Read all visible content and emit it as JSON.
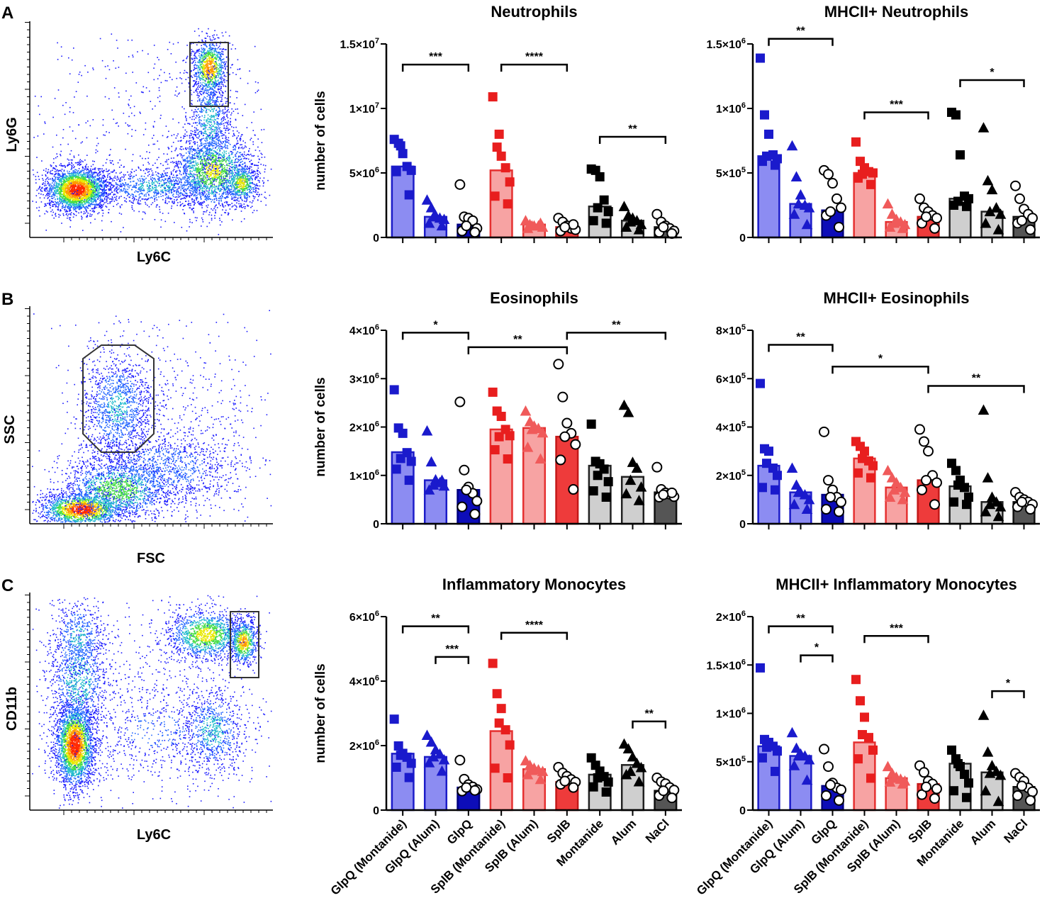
{
  "panels": [
    {
      "letter": "A",
      "flow": {
        "x_label": "Ly6C",
        "y_label": "Ly6G",
        "gate": "rect-top"
      }
    },
    {
      "letter": "B",
      "flow": {
        "x_label": "FSC",
        "y_label": "SSC",
        "gate": "octagon"
      }
    },
    {
      "letter": "C",
      "flow": {
        "x_label": "Ly6C",
        "y_label": "CD11b",
        "gate": "rect-right"
      }
    }
  ],
  "legend_groups": [
    "GlpQ (Montanide)",
    "GlpQ (Alum)",
    "GlpQ",
    "SplB (Montanide)",
    "SplB (Alum)",
    "SplB",
    "Montanide",
    "Alum",
    "NaCl"
  ],
  "colors": {
    "bar_fill": [
      "#8c8cf2",
      "#8c8cf2",
      "#0d0db8",
      "#f7a3a3",
      "#f7a3a3",
      "#ee3b3b",
      "#cfcfcf",
      "#cfcfcf",
      "#555555"
    ],
    "bar_edge": [
      "#1c1cc8",
      "#1c1cc8",
      "#000080",
      "#e53030",
      "#e53030",
      "#c41818",
      "#222222",
      "#222222",
      "#111111"
    ],
    "point_fill": [
      "#1a1acc",
      "#1a1acc",
      "#ffffff",
      "#e81e1e",
      "#f05a5a",
      "#ffffff",
      "#000000",
      "#000000",
      "#ffffff"
    ],
    "axis": "#000000"
  },
  "chart_data": [
    {
      "type": "bar",
      "title": "Neutrophils",
      "ylabel": "number of cells",
      "ylim": [
        0,
        15000000
      ],
      "ticks": [
        {
          "m": "0",
          "e": ""
        },
        {
          "m": "5×10",
          "e": "6"
        },
        {
          "m": "1×10",
          "e": "7"
        },
        {
          "m": "1.5×10",
          "e": "7"
        }
      ],
      "tick_values": [
        0,
        5000000,
        10000000,
        15000000
      ],
      "show_categories": false,
      "categories": [
        "GlpQ (Montanide)",
        "GlpQ (Alum)",
        "GlpQ",
        "SplB (Montanide)",
        "SplB (Alum)",
        "SplB",
        "Montanide",
        "Alum",
        "NaCl"
      ],
      "values": [
        5500000,
        1600000,
        1000000,
        5200000,
        1000000,
        800000,
        2400000,
        1300000,
        800000
      ],
      "points": [
        [
          7600000,
          7300000,
          6500000,
          5500000,
          5200000,
          5100000,
          3300000,
          7100000
        ],
        [
          2900000,
          2300000,
          1700000,
          1500000,
          1400000,
          1100000,
          900000,
          1600000
        ],
        [
          4100000,
          1600000,
          1500000,
          1300000,
          700000,
          500000,
          400000,
          900000
        ],
        [
          10900000,
          7000000,
          6300000,
          5400000,
          4300000,
          3200000,
          2600000,
          8000000
        ],
        [
          1300000,
          1000000,
          900000,
          900000,
          800000,
          700000,
          1100000,
          900000
        ],
        [
          1500000,
          1200000,
          900000,
          700000,
          600000,
          500000,
          1000000,
          800000
        ],
        [
          5300000,
          5200000,
          4700000,
          2900000,
          2000000,
          1300000,
          1100000,
          2300000
        ],
        [
          2400000,
          1700000,
          1500000,
          1300000,
          1000000,
          800000,
          600000,
          1200000
        ],
        [
          1800000,
          1200000,
          900000,
          700000,
          500000,
          400000,
          300000,
          800000
        ]
      ],
      "brackets": [
        {
          "from": 0,
          "to": 2,
          "y": 13400000,
          "stars": "***"
        },
        {
          "from": 3,
          "to": 5,
          "y": 13400000,
          "stars": "****"
        },
        {
          "from": 6,
          "to": 8,
          "y": 7800000,
          "stars": "**"
        }
      ]
    },
    {
      "type": "bar",
      "title": "MHCII+ Neutrophils",
      "ylabel": "",
      "ylim": [
        0,
        1500000
      ],
      "ticks": [
        {
          "m": "0",
          "e": ""
        },
        {
          "m": "5×10",
          "e": "5"
        },
        {
          "m": "1×10",
          "e": "6"
        },
        {
          "m": "1.5×10",
          "e": "6"
        }
      ],
      "tick_values": [
        0,
        500000,
        1000000,
        1500000
      ],
      "show_categories": false,
      "categories": [
        "GlpQ (Montanide)",
        "GlpQ (Alum)",
        "GlpQ",
        "SplB (Montanide)",
        "SplB (Alum)",
        "SplB",
        "Montanide",
        "Alum",
        "NaCl"
      ],
      "values": [
        630000,
        260000,
        210000,
        500000,
        120000,
        160000,
        300000,
        200000,
        160000
      ],
      "points": [
        [
          1390000,
          950000,
          800000,
          640000,
          610000,
          590000,
          560000,
          630000
        ],
        [
          710000,
          470000,
          330000,
          250000,
          230000,
          180000,
          100000,
          260000
        ],
        [
          520000,
          490000,
          420000,
          300000,
          230000,
          170000,
          80000,
          200000
        ],
        [
          740000,
          590000,
          540000,
          510000,
          500000,
          460000,
          410000,
          490000
        ],
        [
          260000,
          180000,
          140000,
          120000,
          100000,
          80000,
          70000,
          110000
        ],
        [
          300000,
          230000,
          200000,
          170000,
          150000,
          110000,
          70000,
          160000
        ],
        [
          970000,
          950000,
          640000,
          320000,
          300000,
          250000,
          240000,
          280000
        ],
        [
          850000,
          440000,
          370000,
          230000,
          180000,
          110000,
          60000,
          200000
        ],
        [
          400000,
          300000,
          220000,
          180000,
          150000,
          110000,
          60000,
          130000
        ]
      ],
      "brackets": [
        {
          "from": 0,
          "to": 2,
          "y": 1540000,
          "stars": "**"
        },
        {
          "from": 3,
          "to": 5,
          "y": 970000,
          "stars": "***"
        },
        {
          "from": 6,
          "to": 8,
          "y": 1220000,
          "stars": "*"
        }
      ]
    },
    {
      "type": "bar",
      "title": "Eosinophils",
      "ylabel": "number of cells",
      "ylim": [
        0,
        4000000
      ],
      "ticks": [
        {
          "m": "0",
          "e": ""
        },
        {
          "m": "1×10",
          "e": "6"
        },
        {
          "m": "2×10",
          "e": "6"
        },
        {
          "m": "3×10",
          "e": "6"
        },
        {
          "m": "4×10",
          "e": "6"
        }
      ],
      "tick_values": [
        0,
        1000000,
        2000000,
        3000000,
        4000000
      ],
      "show_categories": false,
      "categories": [
        "GlpQ (Montanide)",
        "GlpQ (Alum)",
        "GlpQ",
        "SplB (Montanide)",
        "SplB (Alum)",
        "SplB",
        "Montanide",
        "Alum",
        "NaCl"
      ],
      "values": [
        1480000,
        900000,
        700000,
        1950000,
        1980000,
        1800000,
        1200000,
        970000,
        650000
      ],
      "points": [
        [
          2770000,
          1980000,
          1870000,
          1470000,
          1290000,
          1130000,
          900000,
          1350000
        ],
        [
          1920000,
          1280000,
          910000,
          850000,
          780000,
          700000,
          900000,
          800000
        ],
        [
          2520000,
          1110000,
          760000,
          630000,
          470000,
          350000,
          200000,
          700000
        ],
        [
          2720000,
          2330000,
          2220000,
          1950000,
          1820000,
          1530000,
          1340000,
          1800000
        ],
        [
          2330000,
          2110000,
          2020000,
          1970000,
          1880000,
          1580000,
          1340000,
          1950000
        ],
        [
          3300000,
          2620000,
          2080000,
          1870000,
          1640000,
          1320000,
          710000,
          1800000
        ],
        [
          2060000,
          1290000,
          1240000,
          1130000,
          870000,
          680000,
          550000,
          1000000
        ],
        [
          2450000,
          2300000,
          1270000,
          1150000,
          760000,
          620000,
          480000,
          900000
        ],
        [
          1170000,
          710000,
          640000,
          610000,
          560000,
          550000,
          640000,
          600000
        ]
      ],
      "brackets": [
        {
          "from": 0,
          "to": 2,
          "y": 3950000,
          "stars": "*"
        },
        {
          "from": 2,
          "to": 5,
          "y": 3650000,
          "stars": "**"
        },
        {
          "from": 5,
          "to": 8,
          "y": 3950000,
          "stars": "**"
        }
      ]
    },
    {
      "type": "bar",
      "title": "MHCII+ Eosinophils",
      "ylabel": "",
      "ylim": [
        0,
        800000
      ],
      "ticks": [
        {
          "m": "0",
          "e": ""
        },
        {
          "m": "2×10",
          "e": "5"
        },
        {
          "m": "4×10",
          "e": "5"
        },
        {
          "m": "6×10",
          "e": "5"
        },
        {
          "m": "8×10",
          "e": "5"
        }
      ],
      "tick_values": [
        0,
        200000,
        400000,
        600000,
        800000
      ],
      "show_categories": false,
      "categories": [
        "GlpQ (Montanide)",
        "GlpQ (Alum)",
        "GlpQ",
        "SplB (Montanide)",
        "SplB (Alum)",
        "SplB",
        "Montanide",
        "Alum",
        "NaCl"
      ],
      "values": [
        240000,
        130000,
        120000,
        270000,
        150000,
        180000,
        155000,
        90000,
        90000
      ],
      "points": [
        [
          580000,
          310000,
          300000,
          230000,
          200000,
          150000,
          140000,
          250000
        ],
        [
          230000,
          160000,
          130000,
          120000,
          100000,
          80000,
          60000,
          130000
        ],
        [
          380000,
          180000,
          140000,
          110000,
          90000,
          60000,
          50000,
          110000
        ],
        [
          340000,
          320000,
          300000,
          260000,
          240000,
          210000,
          190000,
          270000
        ],
        [
          220000,
          190000,
          170000,
          150000,
          130000,
          110000,
          100000,
          140000
        ],
        [
          390000,
          340000,
          300000,
          200000,
          170000,
          140000,
          80000,
          180000
        ],
        [
          250000,
          220000,
          180000,
          150000,
          110000,
          90000,
          80000,
          160000
        ],
        [
          470000,
          190000,
          110000,
          90000,
          70000,
          50000,
          30000,
          80000
        ],
        [
          130000,
          110000,
          100000,
          90000,
          80000,
          70000,
          60000,
          90000
        ]
      ],
      "brackets": [
        {
          "from": 0,
          "to": 2,
          "y": 740000,
          "stars": "**"
        },
        {
          "from": 2,
          "to": 5,
          "y": 650000,
          "stars": "*"
        },
        {
          "from": 5,
          "to": 8,
          "y": 570000,
          "stars": "**"
        }
      ]
    },
    {
      "type": "bar",
      "title": "Inflammatory Monocytes",
      "ylabel": "number of cells",
      "ylim": [
        0,
        6000000
      ],
      "ticks": [
        {
          "m": "0",
          "e": ""
        },
        {
          "m": "2×10",
          "e": "6"
        },
        {
          "m": "4×10",
          "e": "6"
        },
        {
          "m": "6×10",
          "e": "6"
        }
      ],
      "tick_values": [
        0,
        2000000,
        4000000,
        6000000
      ],
      "show_categories": true,
      "categories": [
        "GlpQ (Montanide)",
        "GlpQ (Alum)",
        "GlpQ",
        "SplB (Montanide)",
        "SplB (Alum)",
        "SplB",
        "Montanide",
        "Alum",
        "NaCl"
      ],
      "values": [
        1750000,
        1650000,
        700000,
        2450000,
        1270000,
        870000,
        1100000,
        1400000,
        600000
      ],
      "points": [
        [
          2820000,
          1990000,
          1760000,
          1640000,
          1450000,
          1330000,
          1010000,
          1700000
        ],
        [
          2320000,
          2110000,
          1870000,
          1740000,
          1560000,
          1470000,
          1210000,
          1650000
        ],
        [
          1550000,
          960000,
          790000,
          720000,
          640000,
          590000,
          610000,
          700000
        ],
        [
          4550000,
          3610000,
          3150000,
          2490000,
          2020000,
          1300000,
          1000000,
          2700000
        ],
        [
          1530000,
          1390000,
          1300000,
          1250000,
          1200000,
          1100000,
          950000,
          1230000
        ],
        [
          1330000,
          1150000,
          1050000,
          950000,
          870000,
          800000,
          700000,
          900000
        ],
        [
          1620000,
          1390000,
          1210000,
          1040000,
          870000,
          720000,
          560000,
          1000000
        ],
        [
          2050000,
          1900000,
          1650000,
          1450000,
          1320000,
          1100000,
          880000,
          1200000
        ],
        [
          1000000,
          880000,
          820000,
          700000,
          620000,
          450000,
          380000,
          600000
        ]
      ],
      "brackets": [
        {
          "from": 0,
          "to": 2,
          "y": 5700000,
          "stars": "**"
        },
        {
          "from": 1,
          "to": 2,
          "y": 4750000,
          "stars": "***"
        },
        {
          "from": 3,
          "to": 5,
          "y": 5500000,
          "stars": "****"
        },
        {
          "from": 7,
          "to": 8,
          "y": 2750000,
          "stars": "**"
        }
      ]
    },
    {
      "type": "bar",
      "title": "MHCII+ Inflammatory Monocytes",
      "ylabel": "",
      "ylim": [
        0,
        2000000
      ],
      "ticks": [
        {
          "m": "0",
          "e": ""
        },
        {
          "m": "5×10",
          "e": "5"
        },
        {
          "m": "1×10",
          "e": "6"
        },
        {
          "m": "1.5×10",
          "e": "6"
        },
        {
          "m": "2×10",
          "e": "6"
        }
      ],
      "tick_values": [
        0,
        500000,
        1000000,
        1500000,
        2000000
      ],
      "show_categories": true,
      "categories": [
        "GlpQ (Montanide)",
        "GlpQ (Alum)",
        "GlpQ",
        "SplB (Montanide)",
        "SplB (Alum)",
        "SplB",
        "Montanide",
        "Alum",
        "NaCl"
      ],
      "values": [
        660000,
        560000,
        250000,
        700000,
        330000,
        270000,
        480000,
        390000,
        240000
      ],
      "points": [
        [
          1470000,
          730000,
          700000,
          660000,
          610000,
          540000,
          400000,
          650000
        ],
        [
          800000,
          640000,
          580000,
          560000,
          520000,
          460000,
          310000,
          560000
        ],
        [
          630000,
          450000,
          280000,
          230000,
          210000,
          150000,
          100000,
          260000
        ],
        [
          1350000,
          1130000,
          960000,
          750000,
          620000,
          530000,
          330000,
          780000
        ],
        [
          450000,
          380000,
          340000,
          320000,
          300000,
          290000,
          270000,
          330000
        ],
        [
          460000,
          390000,
          300000,
          270000,
          220000,
          160000,
          120000,
          240000
        ],
        [
          620000,
          530000,
          450000,
          370000,
          280000,
          200000,
          130000,
          480000
        ],
        [
          980000,
          600000,
          460000,
          400000,
          360000,
          200000,
          90000,
          380000
        ],
        [
          380000,
          340000,
          300000,
          230000,
          190000,
          150000,
          100000,
          250000
        ]
      ],
      "brackets": [
        {
          "from": 0,
          "to": 2,
          "y": 1900000,
          "stars": "**"
        },
        {
          "from": 1,
          "to": 2,
          "y": 1600000,
          "stars": "*"
        },
        {
          "from": 3,
          "to": 5,
          "y": 1800000,
          "stars": "***"
        },
        {
          "from": 7,
          "to": 8,
          "y": 1230000,
          "stars": "*"
        }
      ]
    }
  ]
}
